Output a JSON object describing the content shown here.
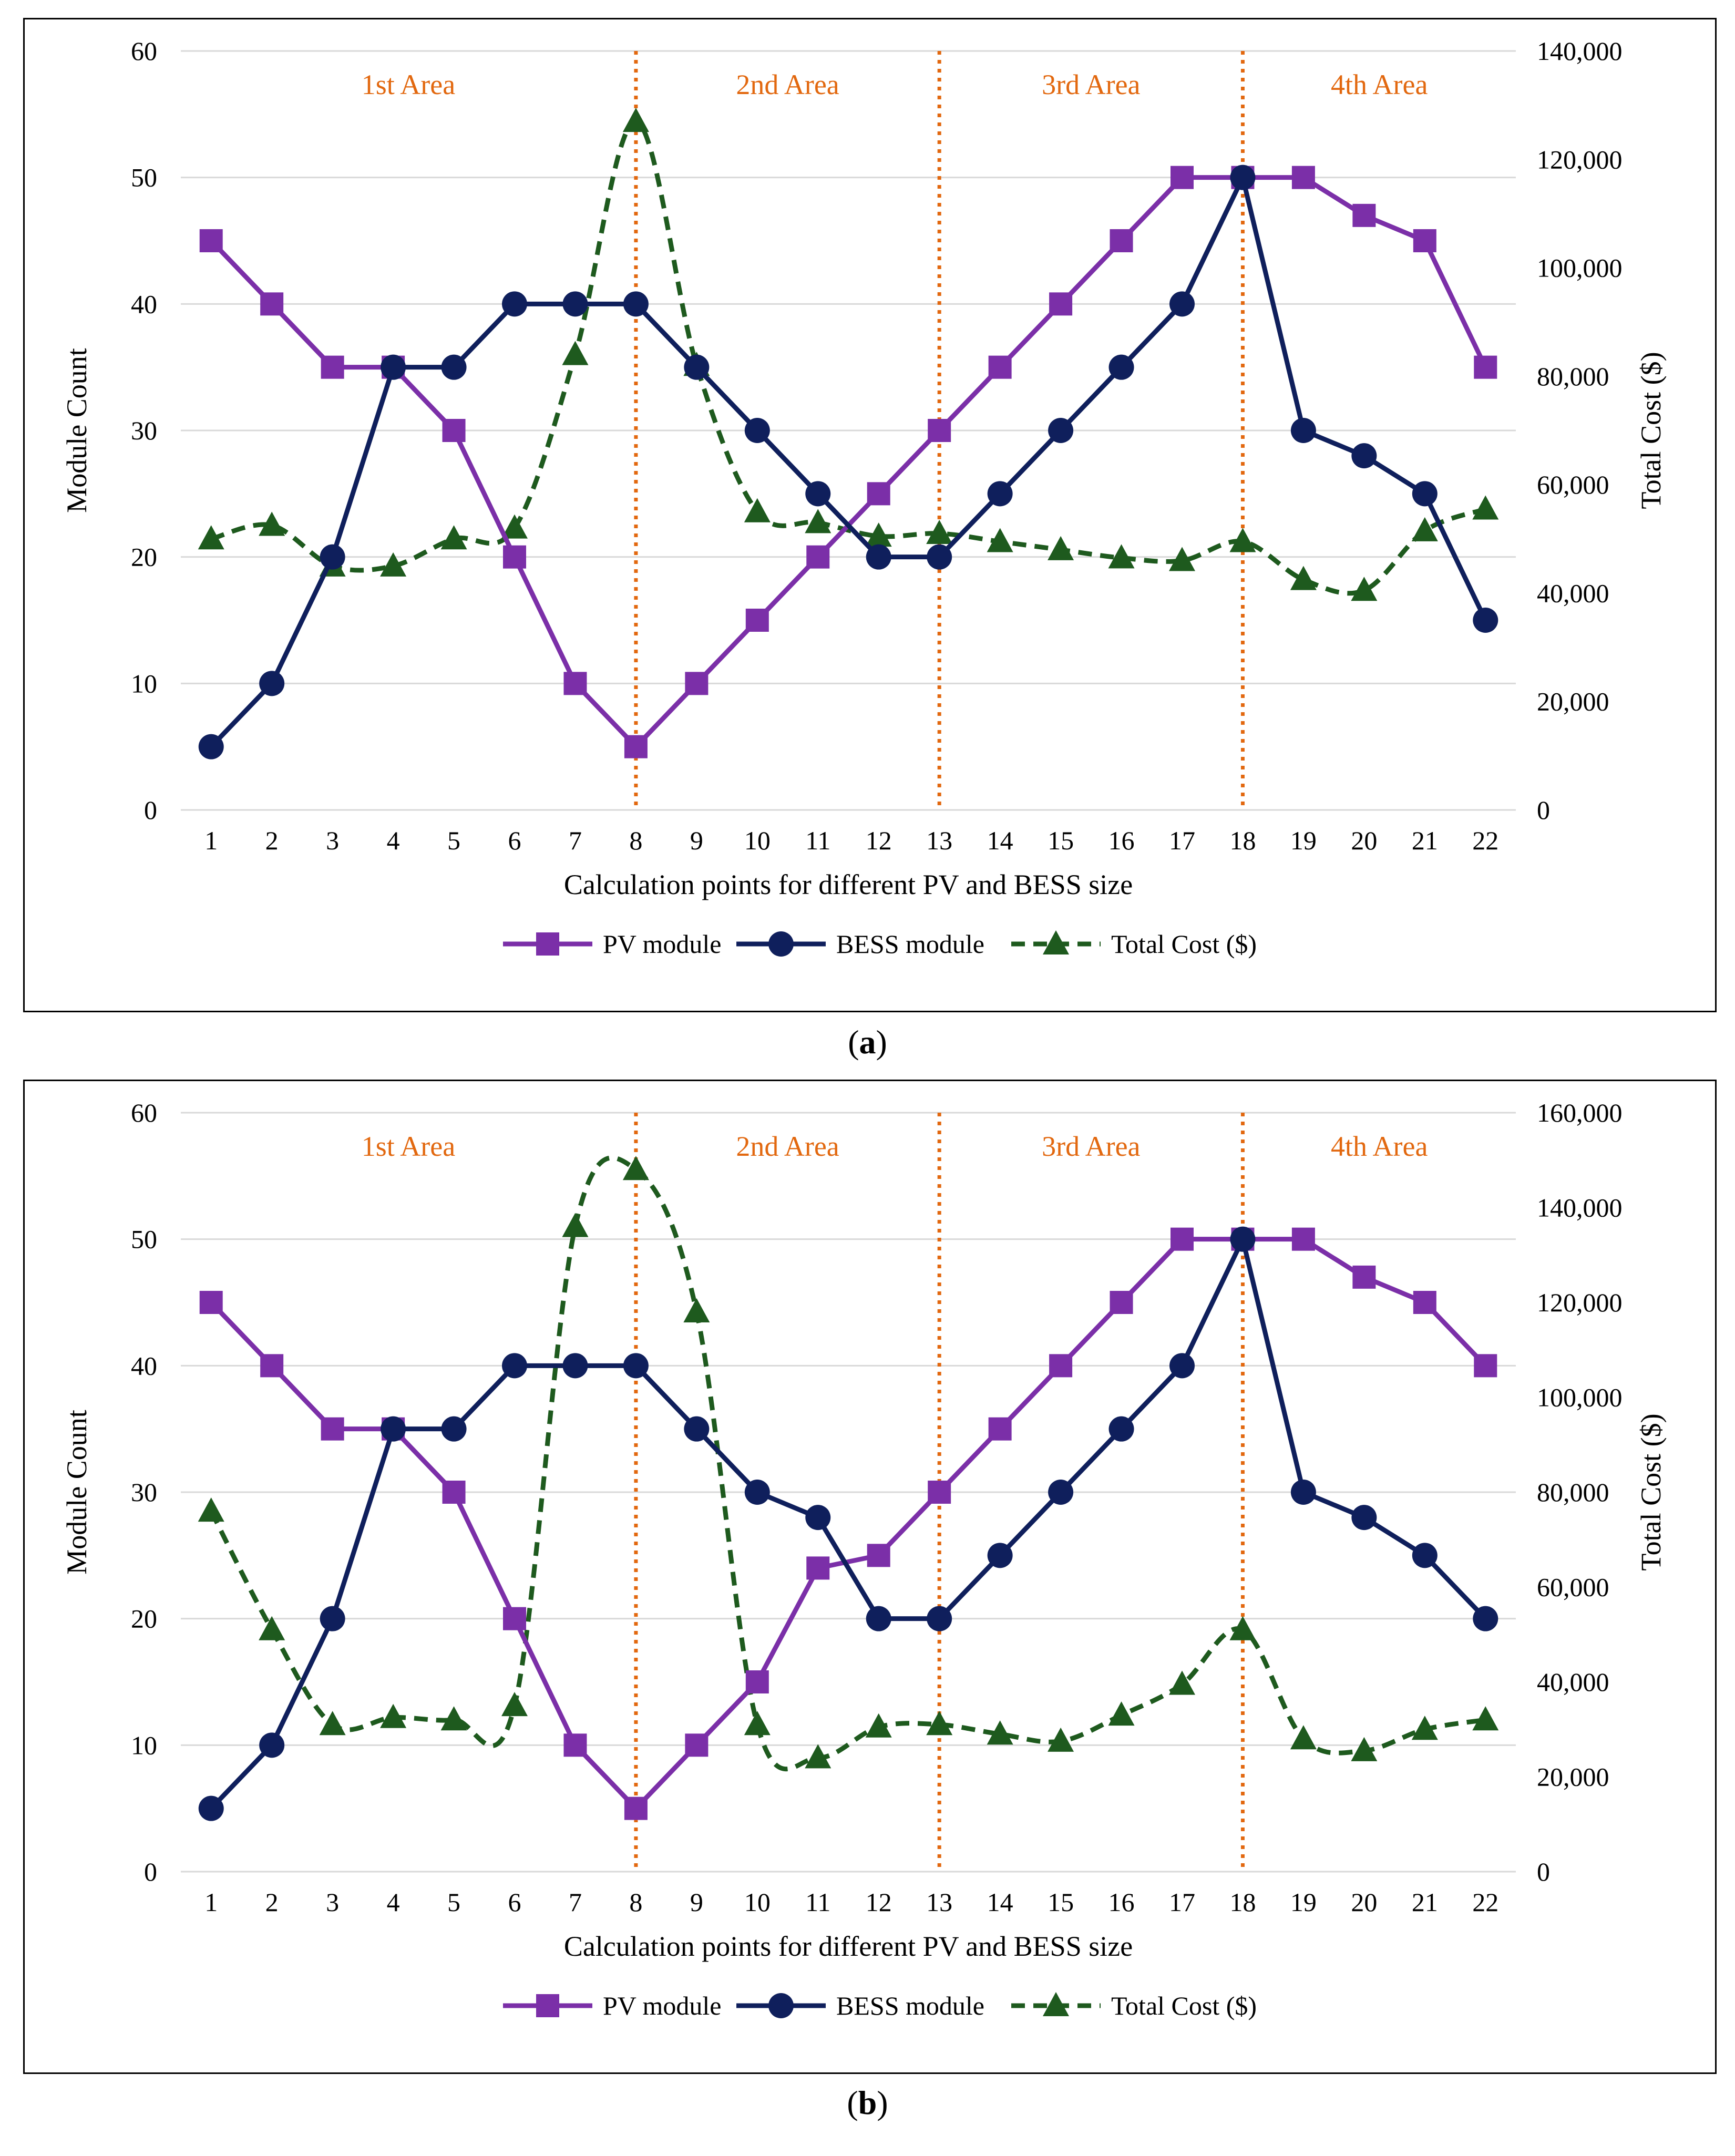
{
  "chart_data": [
    {
      "type": "line",
      "panel_label": "a",
      "categories": [
        "1",
        "2",
        "3",
        "4",
        "5",
        "6",
        "7",
        "8",
        "9",
        "10",
        "11",
        "12",
        "13",
        "14",
        "15",
        "16",
        "17",
        "18",
        "19",
        "20",
        "21",
        "22"
      ],
      "xlabel": "Calculation points for different PV and BESS size",
      "ylabel_left": "Module Count",
      "ylabel_right": "Total Cost ($)",
      "ylim_left": [
        0,
        60
      ],
      "yticks_left": [
        "0",
        "10",
        "20",
        "30",
        "40",
        "50",
        "60"
      ],
      "ylim_right": [
        0,
        140000
      ],
      "yticks_right": [
        "0",
        "20,000",
        "40,000",
        "60,000",
        "80,000",
        "100,000",
        "120,000",
        "140,000"
      ],
      "gridlines": true,
      "area_dividers": [
        8,
        13,
        18
      ],
      "area_labels": [
        "1st Area",
        "2nd Area",
        "3rd Area",
        "4th Area"
      ],
      "legend_position": "bottom",
      "series": [
        {
          "name": "PV module",
          "axis": "left",
          "color": "#7B2FA8",
          "marker": "square",
          "dash": "solid",
          "values": [
            45,
            40,
            35,
            35,
            30,
            20,
            10,
            5,
            10,
            15,
            20,
            25,
            30,
            35,
            40,
            45,
            50,
            50,
            50,
            47,
            45,
            35
          ]
        },
        {
          "name": "BESS module",
          "axis": "left",
          "color": "#0F1F5C",
          "marker": "circle",
          "dash": "solid",
          "values": [
            5,
            10,
            20,
            35,
            35,
            40,
            40,
            40,
            35,
            30,
            25,
            20,
            20,
            25,
            30,
            35,
            40,
            50,
            30,
            28,
            25,
            15
          ]
        },
        {
          "name": "Total Cost ($)",
          "axis": "right",
          "color": "#1E5A1E",
          "marker": "triangle",
          "dash": "dashed",
          "values": [
            50000,
            52500,
            45000,
            45000,
            50000,
            52000,
            84000,
            127000,
            82000,
            55000,
            53000,
            50500,
            51000,
            49500,
            48000,
            46500,
            46000,
            49500,
            42500,
            40500,
            51500,
            55500
          ]
        }
      ]
    },
    {
      "type": "line",
      "panel_label": "b",
      "categories": [
        "1",
        "2",
        "3",
        "4",
        "5",
        "6",
        "7",
        "8",
        "9",
        "10",
        "11",
        "12",
        "13",
        "14",
        "15",
        "16",
        "17",
        "18",
        "19",
        "20",
        "21",
        "22"
      ],
      "xlabel": "Calculation points for different PV and BESS size",
      "ylabel_left": "Module Count",
      "ylabel_right": "Total Cost ($)",
      "ylim_left": [
        0,
        60
      ],
      "yticks_left": [
        "0",
        "10",
        "20",
        "30",
        "40",
        "50",
        "60"
      ],
      "ylim_right": [
        0,
        160000
      ],
      "yticks_right": [
        "0",
        "20,000",
        "40,000",
        "60,000",
        "80,000",
        "100,000",
        "120,000",
        "140,000",
        "160,000"
      ],
      "gridlines": true,
      "area_dividers": [
        8,
        13,
        18
      ],
      "area_labels": [
        "1st Area",
        "2nd Area",
        "3rd Area",
        "4th Area"
      ],
      "legend_position": "bottom",
      "series": [
        {
          "name": "PV module",
          "axis": "left",
          "color": "#7B2FA8",
          "marker": "square",
          "dash": "solid",
          "values": [
            45,
            40,
            35,
            35,
            30,
            20,
            10,
            5,
            10,
            15,
            24,
            25,
            30,
            35,
            40,
            45,
            50,
            50,
            50,
            47,
            45,
            40
          ]
        },
        {
          "name": "BESS module",
          "axis": "left",
          "color": "#0F1F5C",
          "marker": "circle",
          "dash": "solid",
          "values": [
            5,
            10,
            20,
            35,
            35,
            40,
            40,
            40,
            35,
            30,
            28,
            20,
            20,
            25,
            30,
            35,
            40,
            50,
            30,
            28,
            25,
            20
          ]
        },
        {
          "name": "Total Cost ($)",
          "axis": "right",
          "color": "#1E5A1E",
          "marker": "triangle",
          "dash": "dashed",
          "values": [
            76000,
            51000,
            31000,
            32500,
            32000,
            35000,
            136000,
            148000,
            118000,
            31000,
            24000,
            30500,
            31000,
            29000,
            27500,
            33000,
            39500,
            51000,
            28000,
            25500,
            30000,
            32000
          ]
        }
      ]
    }
  ]
}
